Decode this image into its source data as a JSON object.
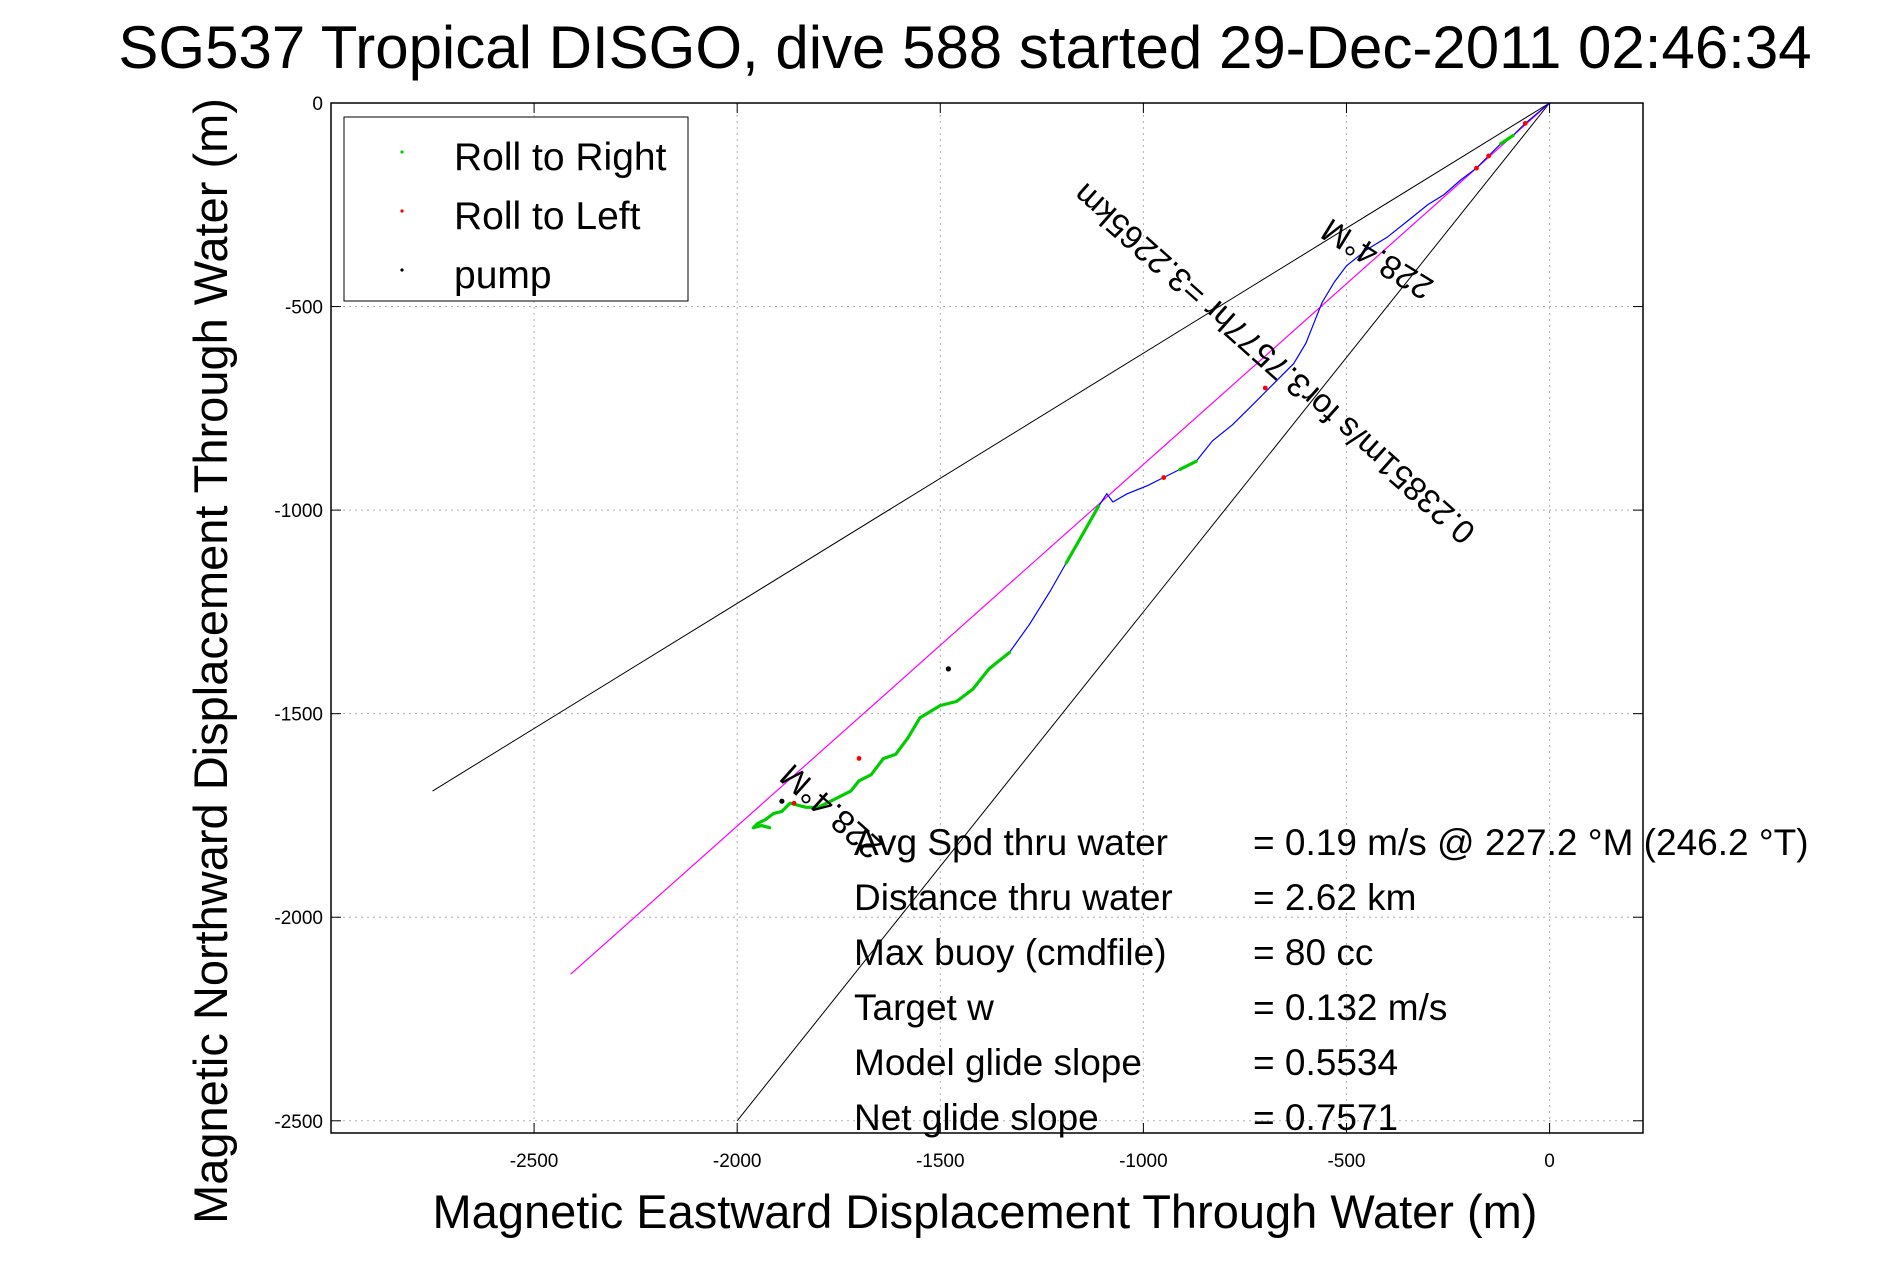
{
  "chart_data": {
    "type": "line",
    "title": "SG537 Tropical DISGO, dive 588 started 29-Dec-2011 02:46:34",
    "xlabel": "Magnetic Eastward Displacement Through Water (m)",
    "ylabel": "Magnetic Northward Displacement Through Water (m)",
    "xlim": [
      -3000,
      230
    ],
    "ylim": [
      -2530,
      0
    ],
    "xticks": [
      -2500,
      -2000,
      -1500,
      -1000,
      -500,
      0
    ],
    "yticks": [
      0,
      -500,
      -1000,
      -1500,
      -2000,
      -2500
    ],
    "xtick_labels": [
      "-2500",
      "-2000",
      "-1500",
      "-1000",
      "-500",
      "0"
    ],
    "ytick_labels": [
      "0",
      "-500",
      "-1000",
      "-1500",
      "-2000",
      "-2500"
    ],
    "grid": true,
    "legend": {
      "placement": "top-left",
      "entries": [
        {
          "label": "Roll to Right",
          "color": "#00cc00"
        },
        {
          "label": "Roll to Left",
          "color": "#ff0000"
        },
        {
          "label": "pump",
          "color": "#000000"
        }
      ]
    },
    "colors": {
      "track": "#0000ff",
      "roll_right": "#00cc00",
      "roll_left": "#ff0000",
      "pump": "#000000",
      "heading_line": "#ff00ff",
      "cone_line": "#000000"
    },
    "series": [
      {
        "name": "track",
        "x": [
          0,
          -30,
          -60,
          -90,
          -120,
          -150,
          -180,
          -220,
          -260,
          -300,
          -350,
          -400,
          -450,
          -500,
          -530,
          -560,
          -580,
          -600,
          -630,
          -680,
          -730,
          -780,
          -830,
          -870,
          -910,
          -950,
          -990,
          -1040,
          -1075,
          -1090,
          -1110,
          -1150,
          -1190,
          -1230,
          -1280,
          -1330,
          -1380,
          -1420,
          -1460,
          -1500,
          -1550,
          -1580,
          -1610,
          -1640,
          -1670,
          -1700,
          -1720,
          -1740,
          -1760,
          -1780,
          -1800,
          -1830,
          -1850,
          -1870,
          -1890,
          -1910,
          -1930,
          -1950,
          -1960,
          -1940,
          -1920
        ],
        "y": [
          0,
          -25,
          -50,
          -80,
          -100,
          -130,
          -160,
          -190,
          -225,
          -250,
          -290,
          -330,
          -360,
          -400,
          -440,
          -490,
          -540,
          -590,
          -640,
          -690,
          -740,
          -790,
          -830,
          -880,
          -900,
          -920,
          -940,
          -960,
          -980,
          -960,
          -990,
          -1060,
          -1130,
          -1200,
          -1280,
          -1350,
          -1390,
          -1440,
          -1470,
          -1480,
          -1510,
          -1560,
          -1600,
          -1610,
          -1650,
          -1665,
          -1690,
          -1700,
          -1710,
          -1720,
          -1730,
          -1730,
          -1725,
          -1720,
          -1740,
          -1745,
          -1760,
          -1770,
          -1780,
          -1775,
          -1780
        ]
      }
    ],
    "roll_right_segments": [
      [
        [
          -90,
          -80
        ],
        [
          -120,
          -100
        ]
      ],
      [
        [
          -1110,
          -990
        ],
        [
          -1150,
          -1060
        ],
        [
          -1190,
          -1130
        ]
      ],
      [
        [
          -1330,
          -1350
        ],
        [
          -1380,
          -1390
        ],
        [
          -1420,
          -1440
        ],
        [
          -1460,
          -1470
        ],
        [
          -1500,
          -1480
        ],
        [
          -1550,
          -1510
        ],
        [
          -1580,
          -1560
        ],
        [
          -1610,
          -1600
        ],
        [
          -1640,
          -1610
        ],
        [
          -1670,
          -1650
        ],
        [
          -1700,
          -1665
        ],
        [
          -1720,
          -1690
        ],
        [
          -1740,
          -1700
        ],
        [
          -1760,
          -1710
        ],
        [
          -1780,
          -1720
        ],
        [
          -1800,
          -1730
        ],
        [
          -1830,
          -1730
        ],
        [
          -1850,
          -1725
        ],
        [
          -1870,
          -1720
        ],
        [
          -1890,
          -1740
        ],
        [
          -1910,
          -1745
        ],
        [
          -1930,
          -1760
        ],
        [
          -1950,
          -1770
        ],
        [
          -1960,
          -1780
        ],
        [
          -1940,
          -1775
        ],
        [
          -1920,
          -1780
        ]
      ],
      [
        [
          -870,
          -880
        ],
        [
          -910,
          -900
        ]
      ]
    ],
    "roll_left_points": [
      [
        -60,
        -50
      ],
      [
        -150,
        -130
      ],
      [
        -180,
        -160
      ],
      [
        -700,
        -700
      ],
      [
        -950,
        -920
      ],
      [
        -1700,
        -1610
      ],
      [
        -1860,
        -1720
      ]
    ],
    "pump_points": [
      [
        -1480,
        -1390
      ],
      [
        -1890,
        -1715
      ]
    ],
    "heading_line": {
      "x": [
        0,
        -2410
      ],
      "y": [
        0,
        -2140
      ]
    },
    "cone_lines": [
      {
        "x": [
          0,
          -2750
        ],
        "y": [
          0,
          -1690
        ]
      },
      {
        "x": [
          0,
          -2000
        ],
        "y": [
          0,
          -2500
        ]
      }
    ],
    "annotations": [
      {
        "text": "228.4°M",
        "x": -1750,
        "y": -1720,
        "rotation": 221.6
      },
      {
        "text": "228.4°M",
        "x": -410,
        "y": -360,
        "rotation": 211.6
      },
      {
        "text": "0.23851m/s for3.7577hr =3.2265km",
        "x": -660,
        "y": -620,
        "rotation": 221.6
      }
    ],
    "stats": [
      {
        "label": "Avg Spd thru water",
        "value": "=  0.19 m/s @ 227.2 °M (246.2 °T)"
      },
      {
        "label": "Distance thru water",
        "value": "=  2.62 km"
      },
      {
        "label": "Max buoy (cmdfile)",
        "value": "= 80 cc"
      },
      {
        "label": "Target w",
        "value": "= 0.132 m/s"
      },
      {
        "label": "Model glide slope",
        "value": "= 0.5534"
      },
      {
        "label": "Net glide slope",
        "value": "= 0.7571"
      }
    ]
  }
}
